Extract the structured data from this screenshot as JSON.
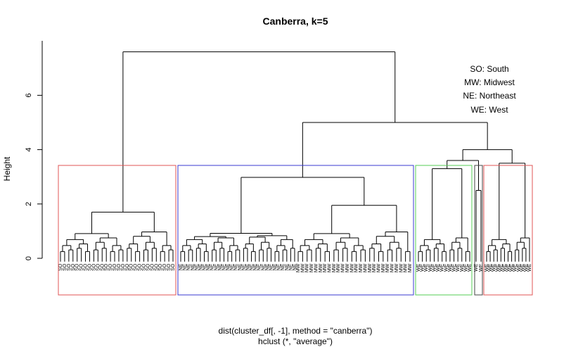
{
  "chart_data": {
    "type": "dendrogram",
    "title": "Canberra, k=5",
    "ylabel": "Height",
    "xlabel": "dist(cluster_df[, -1], method = \"canberra\")",
    "sub": "hclust (*, \"average\")",
    "ylim": [
      0,
      7.8
    ],
    "yticks": [
      0,
      2,
      4,
      6
    ],
    "legend": [
      "SO: South",
      "MW: Midwest",
      "NE: Northeast",
      "WE: West"
    ],
    "main_merges": [
      {
        "left": "SO",
        "right": "NE+MW",
        "height": 7.6
      },
      {
        "left": "NE+MW",
        "right": "WE",
        "height": 5.0
      },
      {
        "left": "NE",
        "right": "MW",
        "height": 2.98
      }
    ],
    "clusters": [
      {
        "label": "SO",
        "color": "#e05555",
        "leaves": [
          "SO",
          "SO",
          "SO",
          "SO",
          "SO",
          "SO",
          "SO",
          "SO",
          "SO",
          "SO",
          "SO",
          "SO",
          "SO",
          "SO",
          "SO",
          "SO",
          "SO",
          "SO",
          "SO",
          "SO",
          "SO",
          "SO",
          "SO",
          "SO",
          "SO",
          "SO",
          "SO",
          "SO"
        ],
        "root_height": 1.7,
        "sub_heights": [
          1.0,
          1.15
        ]
      },
      {
        "label": "NE",
        "color": "#3a3ad0",
        "leaves": [
          "NE",
          "NE",
          "NE",
          "NE",
          "NE",
          "NE",
          "NE",
          "NE",
          "NE",
          "NE",
          "NE",
          "NE",
          "NE",
          "NE",
          "NE",
          "NE",
          "NE",
          "NE",
          "NE",
          "NE",
          "NE",
          "NE",
          "NE",
          "NE",
          "NE",
          "NE",
          "NE",
          "NE",
          "NE",
          "NE"
        ],
        "root_height": 0.92,
        "sub_heights": [
          0.55,
          0.4
        ]
      },
      {
        "label": "MW",
        "color": "#3a3ad0",
        "leaves": [
          "MW",
          "MW",
          "MW",
          "MW",
          "MW",
          "MW",
          "MW",
          "MW",
          "MW",
          "MW",
          "MW",
          "MW",
          "MW",
          "MW",
          "MW",
          "MW",
          "MW",
          "MW",
          "MW",
          "MW",
          "MW",
          "MW",
          "MW",
          "MW",
          "MW",
          "MW"
        ],
        "root_height": 1.95,
        "sub_heights": [
          0.8,
          1.5
        ]
      },
      {
        "label": "WE",
        "color": "#55cc55",
        "leaves": [
          "WE",
          "WE",
          "WE",
          "WE",
          "WE",
          "WE",
          "WE",
          "WE",
          "WE",
          "WE",
          "WE",
          "WE",
          "WE",
          "WE"
        ],
        "root_height": 3.3,
        "sub_heights": [
          2.3,
          2.8
        ]
      },
      {
        "label": "WE",
        "color": "#444444",
        "leaves": [
          "WE",
          "WE"
        ],
        "root_height": 2.5,
        "sub_heights": []
      },
      {
        "label": "WE",
        "color": "#e05555",
        "leaves": [
          "WE",
          "WE",
          "WE",
          "WE",
          "WE",
          "WE",
          "WE",
          "WE",
          "WE",
          "WE",
          "WE",
          "WE",
          "WE"
        ],
        "root_height": 3.5,
        "sub_heights": [
          2.5,
          1.9
        ]
      }
    ]
  }
}
